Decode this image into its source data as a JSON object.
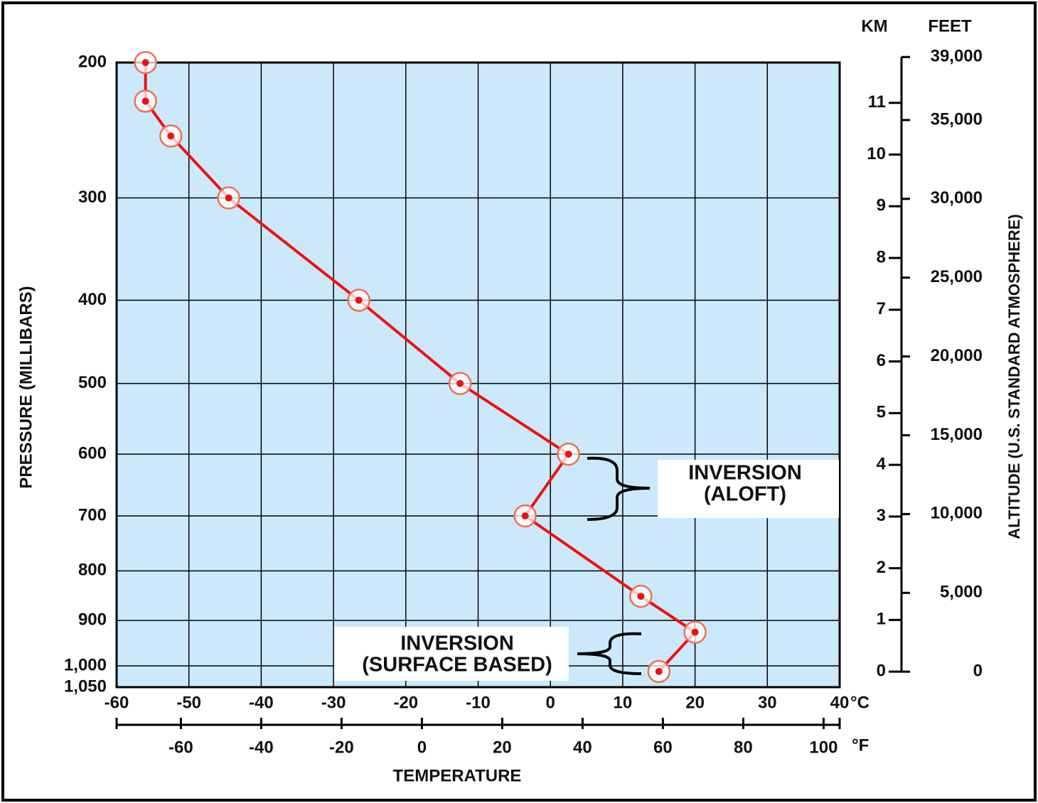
{
  "chart_data": {
    "type": "line",
    "xlabel": "TEMPERATURE",
    "ylabel": "PRESSURE (MILLIBARS)",
    "y2label": "ALTITUDE (U.S. STANDARD ATMOSPHERE)",
    "x_unit": "°C",
    "x2_unit": "°F",
    "y2_title": "KM",
    "y3_title": "FEET",
    "y_scale": "standard-atmosphere",
    "grid": true,
    "background": "#cce9fb",
    "color": "#ee1111",
    "x": [
      -56,
      -56,
      -52.5,
      -44.5,
      -26.5,
      -12.5,
      2.5,
      -3.5,
      12.5,
      20,
      15
    ],
    "values": [
      200,
      225,
      250,
      300,
      400,
      500,
      600,
      700,
      850,
      925,
      1013
    ],
    "xlim": [
      -60,
      40
    ],
    "xticks": [
      -60,
      -50,
      -40,
      -30,
      -20,
      -10,
      0,
      10,
      20,
      30,
      40
    ],
    "x2lim": [
      -76,
      104
    ],
    "x2ticks": [
      -60,
      -40,
      -20,
      0,
      20,
      40,
      60,
      80,
      100
    ],
    "ylim": [
      1050,
      200
    ],
    "yticks": [
      200,
      300,
      400,
      500,
      600,
      700,
      800,
      900,
      {
        "value": 1000,
        "label": "1,000"
      },
      {
        "value": 1050,
        "label": "1,050"
      }
    ],
    "y2lim": [
      -0.3,
      11.78
    ],
    "y2ticks": [
      0,
      1,
      2,
      3,
      4,
      5,
      6,
      7,
      8,
      9,
      10,
      11
    ],
    "y3lim": [
      -984,
      38650
    ],
    "y3ticks": [
      0,
      {
        "value": 5000,
        "label": "5,000"
      },
      {
        "value": 10000,
        "label": "10,000"
      },
      {
        "value": 15000,
        "label": "15,000"
      },
      {
        "value": 20000,
        "label": "20,000"
      },
      {
        "value": 25000,
        "label": "25,000"
      },
      {
        "value": 30000,
        "label": "30,000"
      },
      {
        "value": 35000,
        "label": "35,000"
      },
      {
        "value": 39000,
        "label": "39,000"
      }
    ],
    "annotations": [
      {
        "lines": [
          "INVERSION",
          "(ALOFT)"
        ]
      },
      {
        "lines": [
          "INVERSION",
          "(SURFACE BASED)"
        ]
      }
    ]
  }
}
